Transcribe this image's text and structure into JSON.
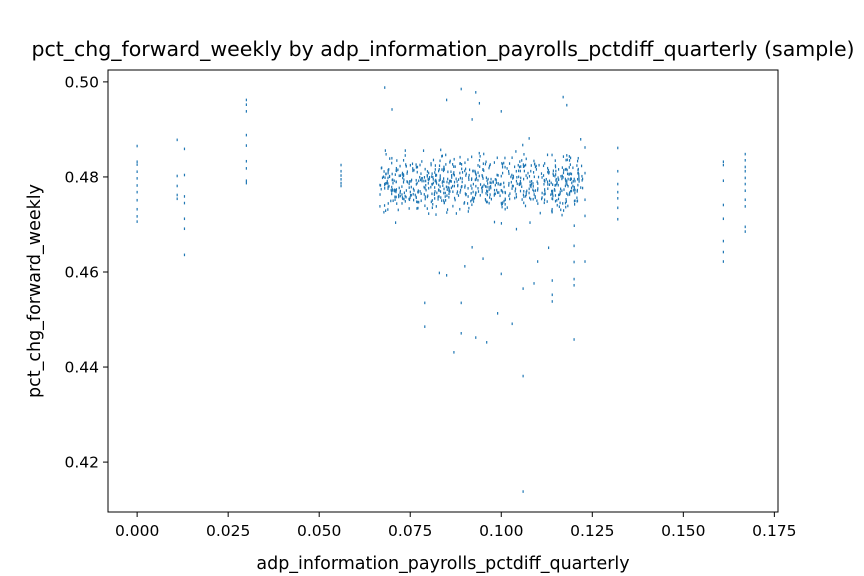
{
  "chart_data": {
    "type": "scatter",
    "title": "pct_chg_forward_weekly by adp_information_payrolls_pctdiff_quarterly (sample)",
    "xlabel": "adp_information_payrolls_pctdiff_quarterly",
    "ylabel": "pct_chg_forward_weekly",
    "xlim": [
      -0.008,
      0.176
    ],
    "ylim": [
      0.4095,
      0.5025
    ],
    "xticks": [
      0.0,
      0.025,
      0.05,
      0.075,
      0.1,
      0.125,
      0.15,
      0.175
    ],
    "xtick_labels": [
      "0.000",
      "0.025",
      "0.050",
      "0.075",
      "0.100",
      "0.125",
      "0.150",
      "0.175"
    ],
    "yticks": [
      0.42,
      0.44,
      0.46,
      0.48,
      0.5
    ],
    "ytick_labels": [
      "0.42",
      "0.44",
      "0.46",
      "0.48",
      "0.50"
    ],
    "grid": false,
    "legend": "none",
    "marker_color": "#1f77b4",
    "series": [
      {
        "points": [
          [
            0.0,
            0.4865
          ],
          [
            0.0,
            0.4832
          ],
          [
            0.0,
            0.4826
          ],
          [
            0.0,
            0.4811
          ],
          [
            0.0,
            0.4797
          ],
          [
            0.0,
            0.4782
          ],
          [
            0.0,
            0.4768
          ],
          [
            0.0,
            0.4751
          ],
          [
            0.0,
            0.4732
          ],
          [
            0.0,
            0.4717
          ],
          [
            0.0,
            0.4706
          ],
          [
            0.011,
            0.4878
          ],
          [
            0.011,
            0.4802
          ],
          [
            0.011,
            0.4781
          ],
          [
            0.011,
            0.4762
          ],
          [
            0.011,
            0.4754
          ],
          [
            0.013,
            0.4859
          ],
          [
            0.013,
            0.4804
          ],
          [
            0.013,
            0.4759
          ],
          [
            0.013,
            0.4745
          ],
          [
            0.013,
            0.4712
          ],
          [
            0.013,
            0.4691
          ],
          [
            0.013,
            0.4636
          ],
          [
            0.03,
            0.4962
          ],
          [
            0.03,
            0.4952
          ],
          [
            0.03,
            0.4938
          ],
          [
            0.03,
            0.4888
          ],
          [
            0.03,
            0.4866
          ],
          [
            0.03,
            0.4833
          ],
          [
            0.03,
            0.4818
          ],
          [
            0.03,
            0.4792
          ],
          [
            0.03,
            0.4787
          ],
          [
            0.056,
            0.4825
          ],
          [
            0.056,
            0.4812
          ],
          [
            0.056,
            0.4803
          ],
          [
            0.056,
            0.4795
          ],
          [
            0.056,
            0.4787
          ],
          [
            0.056,
            0.4781
          ],
          [
            0.068,
            0.4988
          ],
          [
            0.07,
            0.4942
          ],
          [
            0.085,
            0.4962
          ],
          [
            0.089,
            0.4985
          ],
          [
            0.093,
            0.4978
          ],
          [
            0.094,
            0.4955
          ],
          [
            0.092,
            0.4921
          ],
          [
            0.1,
            0.4938
          ],
          [
            0.117,
            0.4968
          ],
          [
            0.118,
            0.4951
          ],
          [
            0.079,
            0.4535
          ],
          [
            0.079,
            0.4485
          ],
          [
            0.087,
            0.4431
          ],
          [
            0.089,
            0.4535
          ],
          [
            0.089,
            0.4471
          ],
          [
            0.093,
            0.4462
          ],
          [
            0.096,
            0.4452
          ],
          [
            0.099,
            0.4513
          ],
          [
            0.103,
            0.4491
          ],
          [
            0.106,
            0.4381
          ],
          [
            0.109,
            0.4576
          ],
          [
            0.1,
            0.4596
          ],
          [
            0.106,
            0.4565
          ],
          [
            0.12,
            0.4458
          ],
          [
            0.106,
            0.4138
          ],
          [
            0.114,
            0.4582
          ],
          [
            0.114,
            0.4552
          ],
          [
            0.114,
            0.4538
          ],
          [
            0.12,
            0.4621
          ],
          [
            0.12,
            0.4585
          ],
          [
            0.12,
            0.4572
          ],
          [
            0.12,
            0.4655
          ],
          [
            0.123,
            0.4622
          ],
          [
            0.085,
            0.4593
          ],
          [
            0.083,
            0.4598
          ],
          [
            0.09,
            0.4612
          ],
          [
            0.092,
            0.4652
          ],
          [
            0.095,
            0.4628
          ],
          [
            0.11,
            0.4622
          ],
          [
            0.113,
            0.4651
          ],
          [
            0.123,
            0.4862
          ],
          [
            0.123,
            0.4808
          ],
          [
            0.123,
            0.4752
          ],
          [
            0.123,
            0.4718
          ],
          [
            0.132,
            0.4861
          ],
          [
            0.132,
            0.4812
          ],
          [
            0.132,
            0.4785
          ],
          [
            0.132,
            0.4768
          ],
          [
            0.132,
            0.4755
          ],
          [
            0.132,
            0.4735
          ],
          [
            0.132,
            0.4711
          ],
          [
            0.161,
            0.4832
          ],
          [
            0.161,
            0.4825
          ],
          [
            0.161,
            0.4792
          ],
          [
            0.161,
            0.4741
          ],
          [
            0.161,
            0.4712
          ],
          [
            0.161,
            0.4665
          ],
          [
            0.161,
            0.4642
          ],
          [
            0.161,
            0.4622
          ],
          [
            0.167,
            0.4848
          ],
          [
            0.167,
            0.4835
          ],
          [
            0.167,
            0.4821
          ],
          [
            0.167,
            0.4812
          ],
          [
            0.167,
            0.4798
          ],
          [
            0.167,
            0.4785
          ],
          [
            0.167,
            0.4771
          ],
          [
            0.167,
            0.4752
          ],
          [
            0.167,
            0.4738
          ],
          [
            0.167,
            0.4695
          ],
          [
            0.167,
            0.4685
          ]
        ]
      }
    ],
    "dense_clusters": [
      {
        "x_range": [
          0.067,
          0.122
        ],
        "y_center": 0.4785,
        "y_spread": 0.0058,
        "count": 780
      }
    ]
  }
}
